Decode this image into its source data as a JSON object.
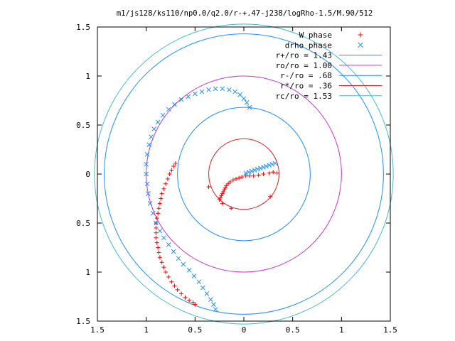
{
  "chart_data": {
    "type": "scatter",
    "title": "m1/js128/ks110/np0.0/q2.0/r-+.47-j238/logRho-1.5/M.90/512",
    "xlabel": "",
    "ylabel": "",
    "xlim": [
      -1.5,
      1.5
    ],
    "ylim": [
      -1.5,
      1.5
    ],
    "x_ticks": [
      {
        "value": -1.5,
        "label": "1.5"
      },
      {
        "value": -1,
        "label": "1"
      },
      {
        "value": -0.5,
        "label": "0.5"
      },
      {
        "value": 0,
        "label": "0"
      },
      {
        "value": 0.5,
        "label": "0.5"
      },
      {
        "value": 1,
        "label": "1"
      },
      {
        "value": 1.5,
        "label": "1.5"
      }
    ],
    "y_ticks": [
      {
        "value": 1.5,
        "label": "1.5"
      },
      {
        "value": 1,
        "label": "1"
      },
      {
        "value": 0.5,
        "label": "0.5"
      },
      {
        "value": 0,
        "label": "0"
      },
      {
        "value": -0.5,
        "label": "0.5"
      },
      {
        "value": -1,
        "label": "1"
      },
      {
        "value": -1.5,
        "label": "1.5"
      }
    ],
    "grid": false,
    "legend_position": "top-right",
    "circles": [
      {
        "name": "r+/ro = 1.43",
        "radius": 1.43,
        "color": "#1e90ff"
      },
      {
        "name": "ro/ro = 1.00",
        "radius": 1.0,
        "color": "#cc33cc"
      },
      {
        "name": "r-/ro = .68",
        "radius": 0.68,
        "color": "#1e90ff"
      },
      {
        "name": "r*/ro = .36",
        "radius": 0.36,
        "color": "#dd2222"
      },
      {
        "name": "rc/ro = 1.53",
        "radius": 1.53,
        "color": "#44bbcc"
      }
    ],
    "series": [
      {
        "name": "W phase",
        "marker": "plus",
        "color": "#ff0000",
        "points": [
          [
            0.34,
            0.01
          ],
          [
            0.3,
            0.02
          ],
          [
            0.26,
            0.01
          ],
          [
            0.2,
            0.0
          ],
          [
            0.15,
            -0.01
          ],
          [
            0.1,
            -0.02
          ],
          [
            0.06,
            -0.02
          ],
          [
            0.02,
            -0.02
          ],
          [
            -0.02,
            -0.03
          ],
          [
            -0.05,
            -0.04
          ],
          [
            -0.08,
            -0.05
          ],
          [
            -0.11,
            -0.06
          ],
          [
            -0.14,
            -0.08
          ],
          [
            -0.16,
            -0.1
          ],
          [
            -0.18,
            -0.12
          ],
          [
            -0.19,
            -0.14
          ],
          [
            -0.2,
            -0.16
          ],
          [
            -0.21,
            -0.18
          ],
          [
            -0.22,
            -0.2
          ],
          [
            -0.23,
            -0.22
          ],
          [
            -0.24,
            -0.24
          ],
          [
            -0.25,
            -0.26
          ],
          [
            -0.22,
            -0.3
          ],
          [
            -0.13,
            -0.35
          ],
          [
            0.27,
            -0.23
          ],
          [
            -0.36,
            -0.13
          ],
          [
            -0.7,
            0.11
          ],
          [
            -0.72,
            0.08
          ],
          [
            -0.74,
            0.04
          ],
          [
            -0.76,
            0.0
          ],
          [
            -0.78,
            -0.05
          ],
          [
            -0.8,
            -0.1
          ],
          [
            -0.82,
            -0.15
          ],
          [
            -0.84,
            -0.2
          ],
          [
            -0.85,
            -0.25
          ],
          [
            -0.86,
            -0.3
          ],
          [
            -0.87,
            -0.35
          ],
          [
            -0.88,
            -0.4
          ],
          [
            -0.89,
            -0.45
          ],
          [
            -0.9,
            -0.5
          ],
          [
            -0.9,
            -0.55
          ],
          [
            -0.9,
            -0.6
          ],
          [
            -0.9,
            -0.65
          ],
          [
            -0.89,
            -0.7
          ],
          [
            -0.88,
            -0.75
          ],
          [
            -0.87,
            -0.8
          ],
          [
            -0.86,
            -0.85
          ],
          [
            -0.84,
            -0.9
          ],
          [
            -0.82,
            -0.95
          ],
          [
            -0.8,
            -1.0
          ],
          [
            -0.77,
            -1.05
          ],
          [
            -0.74,
            -1.1
          ],
          [
            -0.71,
            -1.14
          ],
          [
            -0.68,
            -1.18
          ],
          [
            -0.64,
            -1.22
          ],
          [
            -0.6,
            -1.26
          ],
          [
            -0.56,
            -1.29
          ],
          [
            -0.52,
            -1.31
          ],
          [
            -0.5,
            -1.33
          ]
        ]
      },
      {
        "name": "drho phase",
        "marker": "cross",
        "color": "#1e90ff",
        "points": [
          [
            0.02,
            0.01
          ],
          [
            0.05,
            0.02
          ],
          [
            0.08,
            0.03
          ],
          [
            0.11,
            0.04
          ],
          [
            0.14,
            0.05
          ],
          [
            0.17,
            0.06
          ],
          [
            0.2,
            0.07
          ],
          [
            0.23,
            0.08
          ],
          [
            0.26,
            0.09
          ],
          [
            0.29,
            0.1
          ],
          [
            0.32,
            0.11
          ],
          [
            0.06,
            0.68
          ],
          [
            0.03,
            0.73
          ],
          [
            0.0,
            0.77
          ],
          [
            -0.04,
            0.81
          ],
          [
            -0.09,
            0.84
          ],
          [
            -0.15,
            0.86
          ],
          [
            -0.22,
            0.87
          ],
          [
            -0.29,
            0.87
          ],
          [
            -0.36,
            0.86
          ],
          [
            -0.43,
            0.84
          ],
          [
            -0.5,
            0.82
          ],
          [
            -0.57,
            0.79
          ],
          [
            -0.64,
            0.76
          ],
          [
            -0.71,
            0.71
          ],
          [
            -0.77,
            0.66
          ],
          [
            -0.83,
            0.6
          ],
          [
            -0.88,
            0.53
          ],
          [
            -0.92,
            0.46
          ],
          [
            -0.95,
            0.38
          ],
          [
            -0.97,
            0.3
          ],
          [
            -0.99,
            0.2
          ],
          [
            -1.0,
            0.1
          ],
          [
            -1.0,
            0.0
          ],
          [
            -0.99,
            -0.1
          ],
          [
            -0.98,
            -0.2
          ],
          [
            -0.96,
            -0.3
          ],
          [
            -0.93,
            -0.4
          ],
          [
            -0.9,
            -0.5
          ],
          [
            -0.86,
            -0.58
          ],
          [
            -0.82,
            -0.65
          ],
          [
            -0.77,
            -0.72
          ],
          [
            -0.72,
            -0.79
          ],
          [
            -0.67,
            -0.86
          ],
          [
            -0.62,
            -0.92
          ],
          [
            -0.56,
            -0.98
          ],
          [
            -0.51,
            -1.04
          ],
          [
            -0.46,
            -1.1
          ],
          [
            -0.42,
            -1.16
          ],
          [
            -0.38,
            -1.22
          ],
          [
            -0.34,
            -1.28
          ],
          [
            -0.31,
            -1.33
          ],
          [
            -0.29,
            -1.38
          ]
        ]
      }
    ]
  }
}
